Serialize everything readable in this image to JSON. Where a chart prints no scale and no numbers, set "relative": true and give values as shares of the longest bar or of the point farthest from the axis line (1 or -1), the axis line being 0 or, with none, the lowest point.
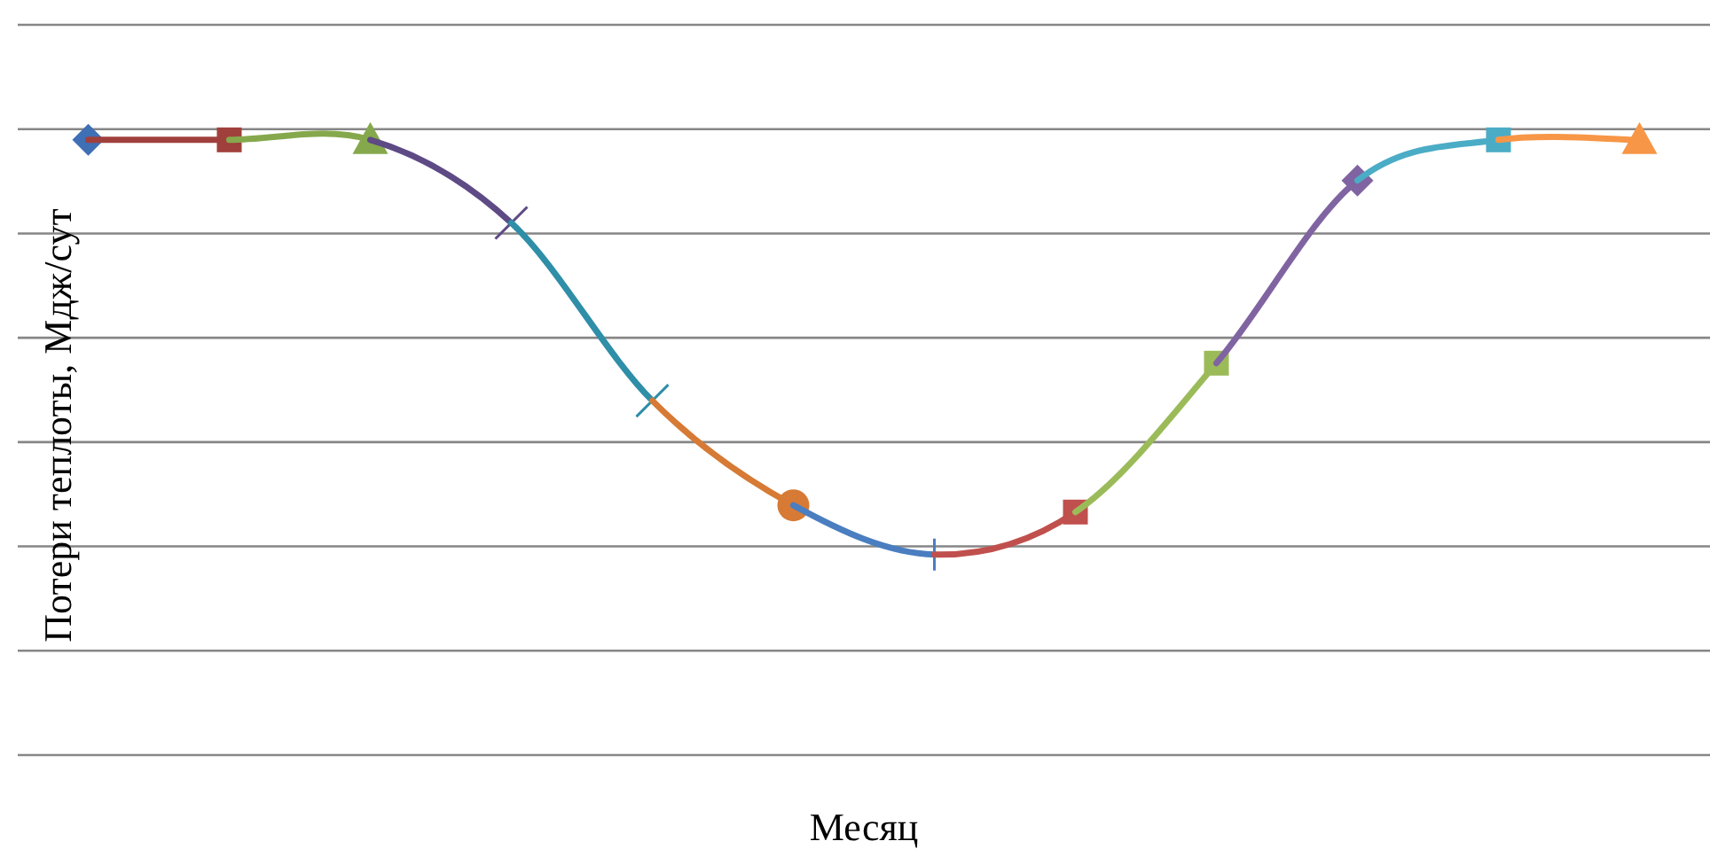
{
  "chart_data": {
    "type": "line",
    "relative": true,
    "grid": true,
    "xlabel": "Месяц",
    "ylabel": "Потери теплоты,  Мдж/сут",
    "categories": [
      null,
      null,
      null,
      null,
      null,
      null,
      null,
      null,
      null,
      null,
      null,
      null
    ],
    "series": [
      {
        "color": "#3f6fb5",
        "marker": "diamond",
        "values": [
          1,
          null,
          null,
          null,
          null,
          null,
          null,
          null,
          null,
          null,
          null,
          null
        ]
      },
      {
        "color": "#a0403c",
        "marker": "square",
        "values": [
          1,
          1,
          null,
          null,
          null,
          null,
          null,
          null,
          null,
          null,
          null,
          null
        ]
      },
      {
        "color": "#86a84c",
        "marker": "triangle",
        "values": [
          null,
          1,
          1,
          null,
          null,
          null,
          null,
          null,
          null,
          null,
          null,
          null
        ]
      },
      {
        "color": "#5e4a85",
        "marker": "cross",
        "values": [
          null,
          null,
          1,
          0.865,
          null,
          null,
          null,
          null,
          null,
          null,
          null,
          null
        ]
      },
      {
        "color": "#2f8ea8",
        "marker": "cross",
        "values": [
          null,
          null,
          null,
          0.865,
          0.576,
          null,
          null,
          null,
          null,
          null,
          null,
          null
        ]
      },
      {
        "color": "#d67a35",
        "marker": "circle",
        "values": [
          null,
          null,
          null,
          null,
          0.576,
          0.406,
          null,
          null,
          null,
          null,
          null,
          null
        ]
      },
      {
        "color": "#4a7ec0",
        "marker": "plus",
        "values": [
          null,
          null,
          null,
          null,
          null,
          0.406,
          0.326,
          null,
          null,
          null,
          null,
          null
        ]
      },
      {
        "color": "#c0504d",
        "marker": "square",
        "values": [
          null,
          null,
          null,
          null,
          null,
          null,
          0.326,
          0.395,
          null,
          null,
          null,
          null
        ]
      },
      {
        "color": "#9bbb59",
        "marker": "square",
        "values": [
          null,
          null,
          null,
          null,
          null,
          null,
          null,
          0.395,
          0.637,
          null,
          null,
          null
        ]
      },
      {
        "color": "#8064a2",
        "marker": "diamond",
        "values": [
          null,
          null,
          null,
          null,
          null,
          null,
          null,
          null,
          0.637,
          0.934,
          null,
          null
        ]
      },
      {
        "color": "#4bacc6",
        "marker": "square",
        "values": [
          null,
          null,
          null,
          null,
          null,
          null,
          null,
          null,
          null,
          0.934,
          1,
          null
        ]
      },
      {
        "color": "#f79646",
        "marker": "triangle",
        "values": [
          null,
          null,
          null,
          null,
          null,
          null,
          null,
          null,
          null,
          null,
          1,
          1
        ]
      }
    ]
  }
}
